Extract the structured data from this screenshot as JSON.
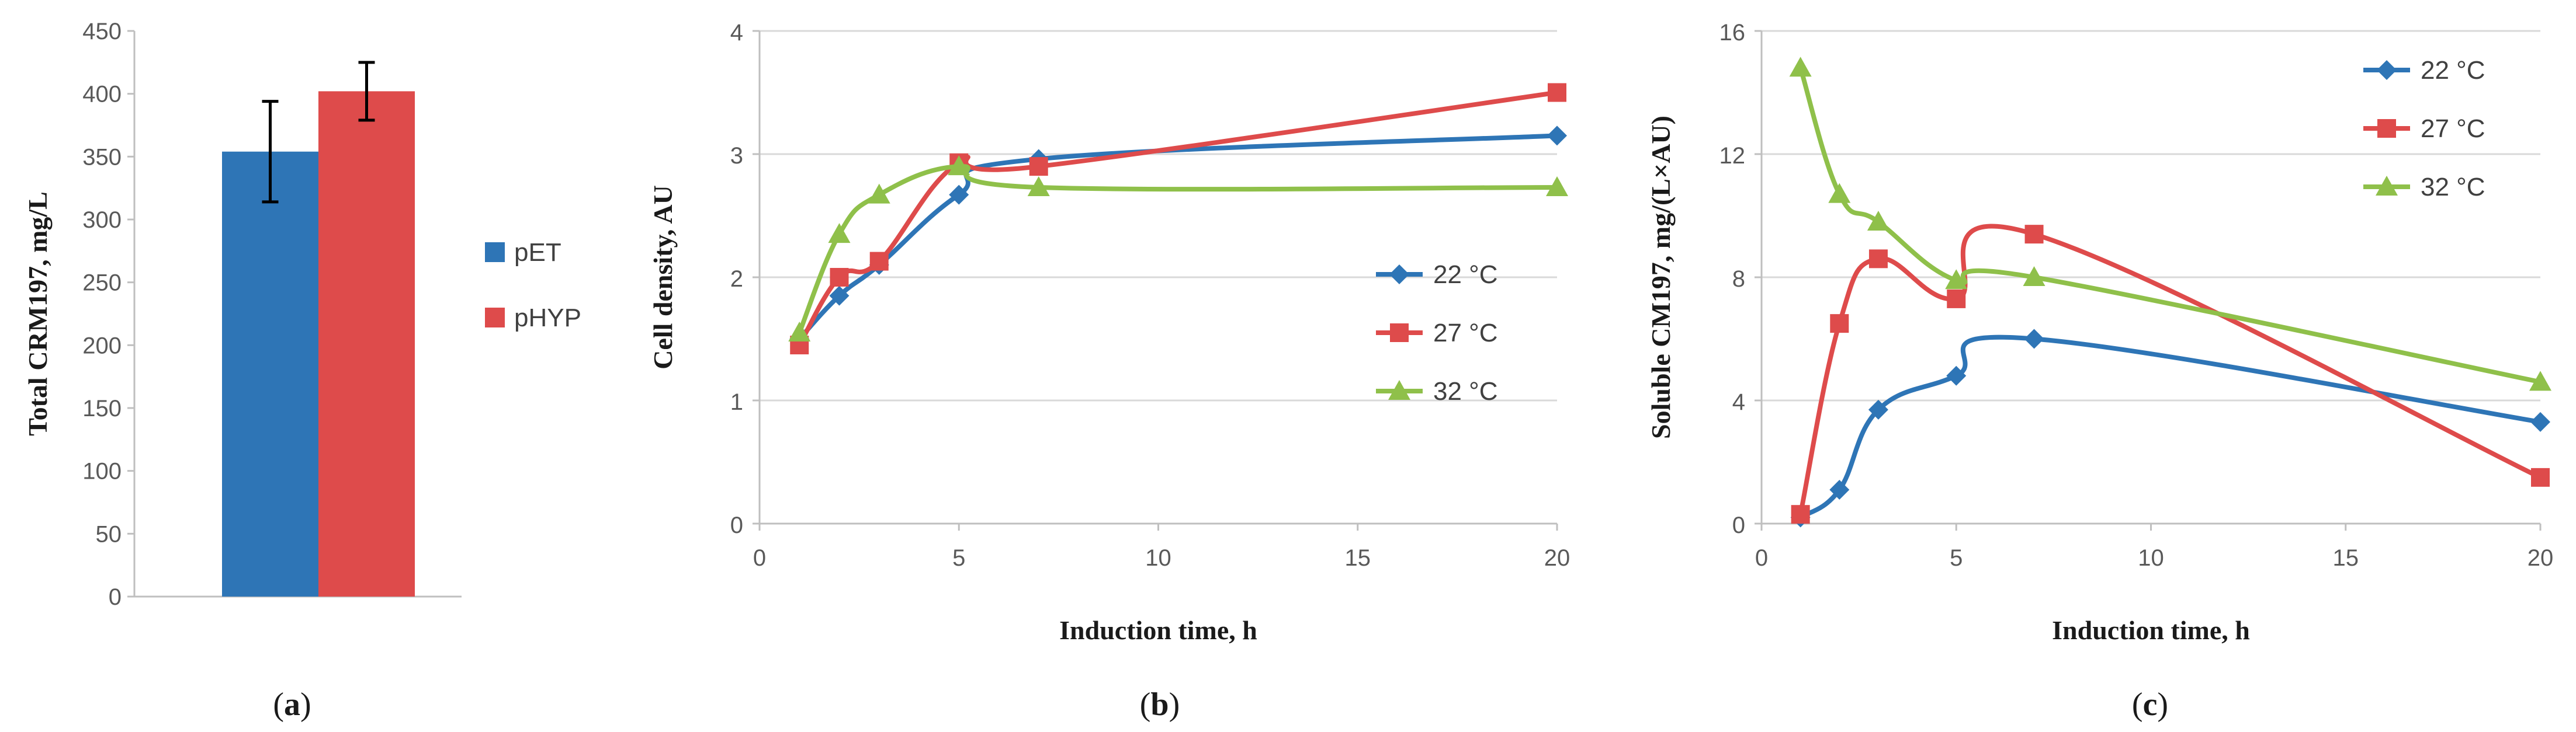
{
  "colors": {
    "blue": "#2e75b6",
    "red": "#de4b4b",
    "green": "#8fc04a",
    "grid": "#d9d9d9",
    "axis": "#bfbfbf"
  },
  "chart_data": [
    {
      "id": "a",
      "type": "bar",
      "panel_label": "a",
      "categories": [
        ""
      ],
      "series": [
        {
          "name": "pET",
          "values": [
            354
          ],
          "error": [
            40
          ],
          "color": "#2e75b6"
        },
        {
          "name": "pHYP",
          "values": [
            402
          ],
          "error": [
            23
          ],
          "color": "#de4b4b"
        }
      ],
      "ylabel": "Total CRM197,  mg/L",
      "xlabel": "",
      "ylim": [
        0,
        450
      ],
      "yticks": [
        "0",
        "50",
        "100",
        "150",
        "200",
        "250",
        "300",
        "350",
        "400",
        "450"
      ],
      "legend": "right"
    },
    {
      "id": "b",
      "type": "line",
      "panel_label": "b",
      "x": [
        1,
        2,
        3,
        5,
        7,
        20
      ],
      "series": [
        {
          "name": "22 °C",
          "values": [
            1.5,
            1.85,
            2.1,
            2.67,
            2.96,
            3.15
          ],
          "marker": "diamond",
          "color": "#2e75b6"
        },
        {
          "name": "27 °C",
          "values": [
            1.45,
            2.0,
            2.13,
            2.93,
            2.9,
            3.5
          ],
          "marker": "square",
          "color": "#de4b4b"
        },
        {
          "name": "32 °C",
          "values": [
            1.55,
            2.35,
            2.67,
            2.9,
            2.73,
            2.73
          ],
          "marker": "triangle",
          "color": "#8fc04a"
        }
      ],
      "ylabel": "Cell density,  AU",
      "xlabel": "Induction time, h",
      "xlim": [
        0,
        20
      ],
      "ylim": [
        0,
        4
      ],
      "xticks": [
        "0",
        "5",
        "10",
        "15",
        "20"
      ],
      "yticks": [
        "0",
        "1",
        "2",
        "3",
        "4"
      ],
      "legend": "center-right"
    },
    {
      "id": "c",
      "type": "line",
      "panel_label": "c",
      "x": [
        1,
        2,
        3,
        5,
        7,
        20
      ],
      "series": [
        {
          "name": "22 °C",
          "values": [
            0.2,
            1.1,
            3.7,
            4.8,
            6.0,
            3.3
          ],
          "marker": "diamond",
          "color": "#2e75b6"
        },
        {
          "name": "27 °C",
          "values": [
            0.3,
            6.5,
            8.6,
            7.3,
            9.4,
            1.5
          ],
          "marker": "square",
          "color": "#de4b4b"
        },
        {
          "name": "32 °C",
          "values": [
            14.8,
            10.7,
            9.8,
            7.9,
            8.0,
            4.6
          ],
          "marker": "triangle",
          "color": "#8fc04a"
        }
      ],
      "ylabel": "Soluble CM197,  mg/(L×AU)",
      "xlabel": "Induction time, h",
      "xlim": [
        0,
        20
      ],
      "ylim": [
        0,
        16
      ],
      "xticks": [
        "0",
        "5",
        "10",
        "15",
        "20"
      ],
      "yticks": [
        "0",
        "4",
        "8",
        "12",
        "16"
      ],
      "legend": "top-right"
    }
  ]
}
